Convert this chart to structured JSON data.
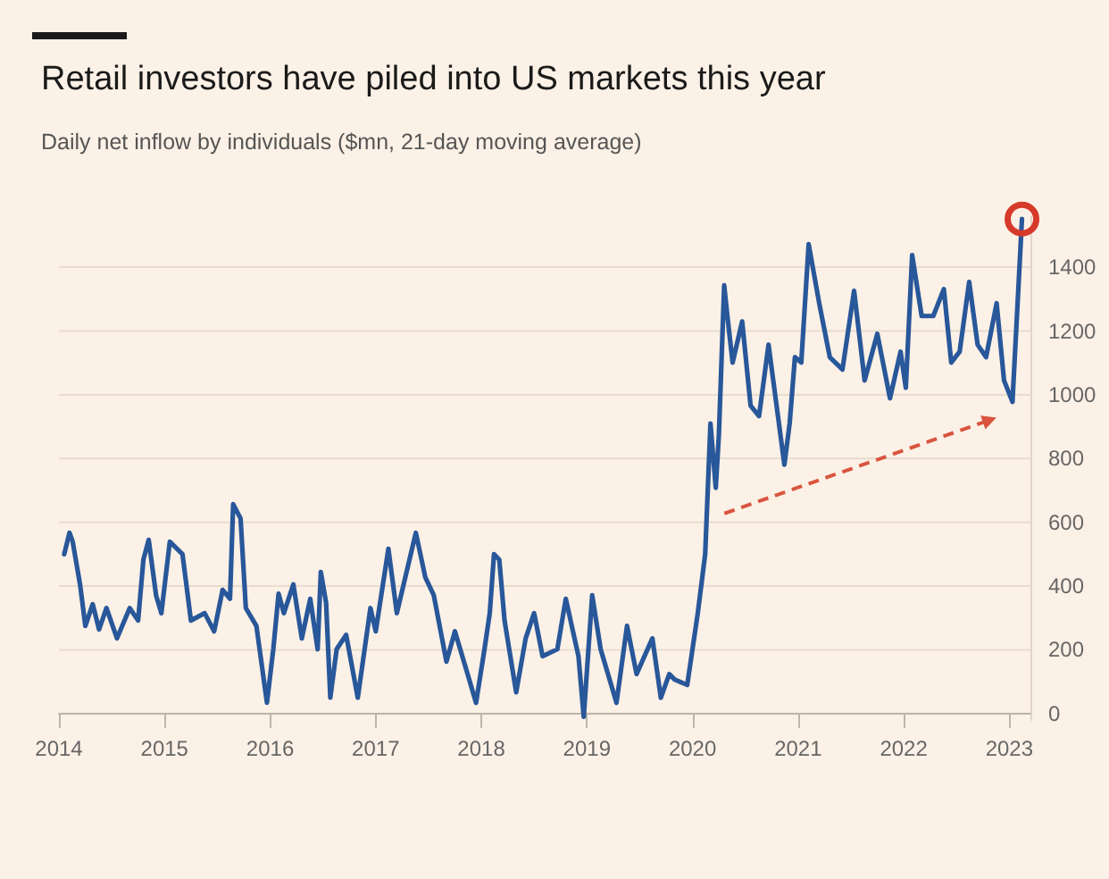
{
  "chart_data": {
    "type": "line",
    "title": "Retail investors have piled into US markets this year",
    "subtitle": "Daily net inflow by individuals ($mn, 21-day moving average)",
    "series": [
      {
        "color": "#28579a",
        "x": [
          2014.05,
          2014.1,
          2014.13,
          2014.2,
          2014.25,
          2014.32,
          2014.38,
          2014.45,
          2014.55,
          2014.67,
          2014.75,
          2014.8,
          2014.85,
          2014.92,
          2014.97,
          2015.05,
          2015.17,
          2015.25,
          2015.38,
          2015.47,
          2015.55,
          2015.62,
          2015.65,
          2015.72,
          2015.77,
          2015.87,
          2015.97,
          2016.03,
          2016.08,
          2016.13,
          2016.22,
          2016.3,
          2016.38,
          2016.45,
          2016.48,
          2016.53,
          2016.57,
          2016.63,
          2016.72,
          2016.83,
          2016.95,
          2017.0,
          2017.12,
          2017.2,
          2017.28,
          2017.38,
          2017.47,
          2017.55,
          2017.67,
          2017.75,
          2017.87,
          2017.95,
          2018.03,
          2018.08,
          2018.12,
          2018.17,
          2018.22,
          2018.33,
          2018.42,
          2018.5,
          2018.58,
          2018.72,
          2018.8,
          2018.92,
          2018.97,
          2019.05,
          2019.13,
          2019.28,
          2019.38,
          2019.47,
          2019.62,
          2019.7,
          2019.78,
          2019.83,
          2019.95,
          2020.05,
          2020.12,
          2020.17,
          2020.22,
          2020.25,
          2020.3,
          2020.33,
          2020.38,
          2020.47,
          2020.55,
          2020.63,
          2020.72,
          2020.78,
          2020.87,
          2020.92,
          2020.97,
          2021.03,
          2021.1,
          2021.2,
          2021.3,
          2021.42,
          2021.53,
          2021.63,
          2021.75,
          2021.87,
          2021.97,
          2022.02,
          2022.08,
          2022.17,
          2022.28,
          2022.38,
          2022.45,
          2022.53,
          2022.62,
          2022.7,
          2022.78,
          2022.88,
          2022.95,
          2023.03,
          2023.12
        ],
        "values": [
          500,
          567,
          540,
          405,
          275,
          343,
          264,
          331,
          236,
          331,
          292,
          483,
          545,
          371,
          315,
          539,
          500,
          292,
          315,
          258,
          388,
          360,
          657,
          612,
          331,
          275,
          34,
          202,
          376,
          315,
          405,
          236,
          360,
          202,
          444,
          348,
          50,
          202,
          247,
          50,
          331,
          258,
          517,
          315,
          427,
          567,
          427,
          371,
          163,
          258,
          124,
          34,
          202,
          315,
          500,
          483,
          292,
          67,
          236,
          315,
          180,
          202,
          360,
          180,
          -10,
          371,
          202,
          34,
          275,
          124,
          236,
          50,
          124,
          107,
          90,
          315,
          500,
          910,
          708,
          876,
          1343,
          1247,
          1101,
          1230,
          966,
          933,
          1157,
          1006,
          781,
          910,
          1118,
          1101,
          1472,
          1287,
          1118,
          1079,
          1326,
          1045,
          1191,
          989,
          1135,
          1022,
          1438,
          1247,
          1247,
          1331,
          1101,
          1135,
          1354,
          1157,
          1118,
          1287,
          1045,
          978,
          1551
        ]
      }
    ],
    "xlim": [
      2014,
      2023.2
    ],
    "xticks": [
      2014,
      2015,
      2016,
      2017,
      2018,
      2019,
      2020,
      2021,
      2022,
      2023
    ],
    "ylim": [
      -20,
      1560
    ],
    "yticks": [
      0,
      200,
      400,
      600,
      800,
      1000,
      1200,
      1400
    ],
    "grid": "y",
    "marker": "none",
    "line_style": "solid"
  }
}
